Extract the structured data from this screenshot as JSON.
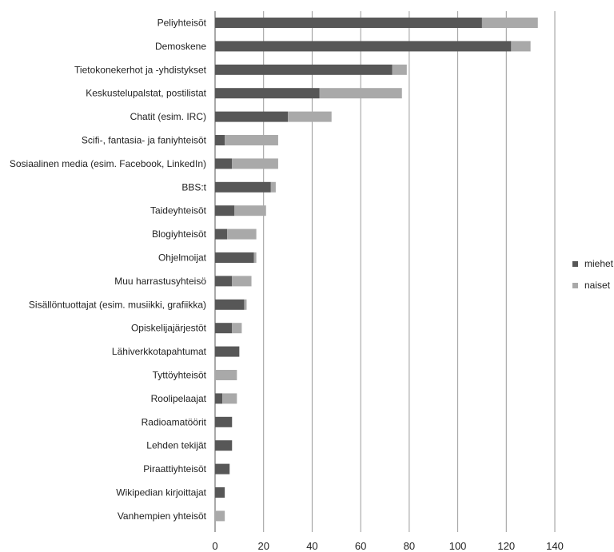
{
  "chart_data": {
    "type": "bar",
    "orientation": "horizontal",
    "stacked": true,
    "categories": [
      "Peliyhteisöt",
      "Demoskene",
      "Tietokonekerhot ja -yhdistykset",
      "Keskustelupalstat, postilistat",
      "Chatit (esim. IRC)",
      "Scifi-, fantasia- ja faniyhteisöt",
      "Sosiaalinen media (esim. Facebook, LinkedIn)",
      "BBS:t",
      "Taideyhteisöt",
      "Blogiyhteisöt",
      "Ohjelmoijat",
      "Muu harrastusyhteisö",
      "Sisällöntuottajat (esim. musiikki, grafiikka)",
      "Opiskelijajärjestöt",
      "Lähiverkkotapahtumat",
      "Tyttöyhteisöt",
      "Roolipelaajat",
      "Radioamatöörit",
      "Lehden tekijät",
      "Piraattiyhteisöt",
      "Wikipedian kirjoittajat",
      "Vanhempien yhteisöt"
    ],
    "series": [
      {
        "name": "miehet",
        "color": "#575757",
        "values": [
          110,
          122,
          73,
          43,
          30,
          4,
          7,
          23,
          8,
          5,
          16,
          7,
          12,
          7,
          10,
          0,
          3,
          7,
          7,
          6,
          4,
          0
        ]
      },
      {
        "name": "naiset",
        "color": "#a9a9a9",
        "values": [
          23,
          8,
          6,
          34,
          18,
          22,
          19,
          2,
          13,
          12,
          1,
          8,
          1,
          4,
          0,
          9,
          6,
          0,
          0,
          0,
          0,
          4
        ]
      }
    ],
    "xlim": [
      0,
      140
    ],
    "xticks": [
      0,
      20,
      40,
      60,
      80,
      100,
      120,
      140
    ],
    "xlabel": "",
    "ylabel": "",
    "title": "",
    "grid": "vertical",
    "legend": "right"
  },
  "colors": {
    "grid": "#9a9a9a",
    "axis": "#555555"
  }
}
